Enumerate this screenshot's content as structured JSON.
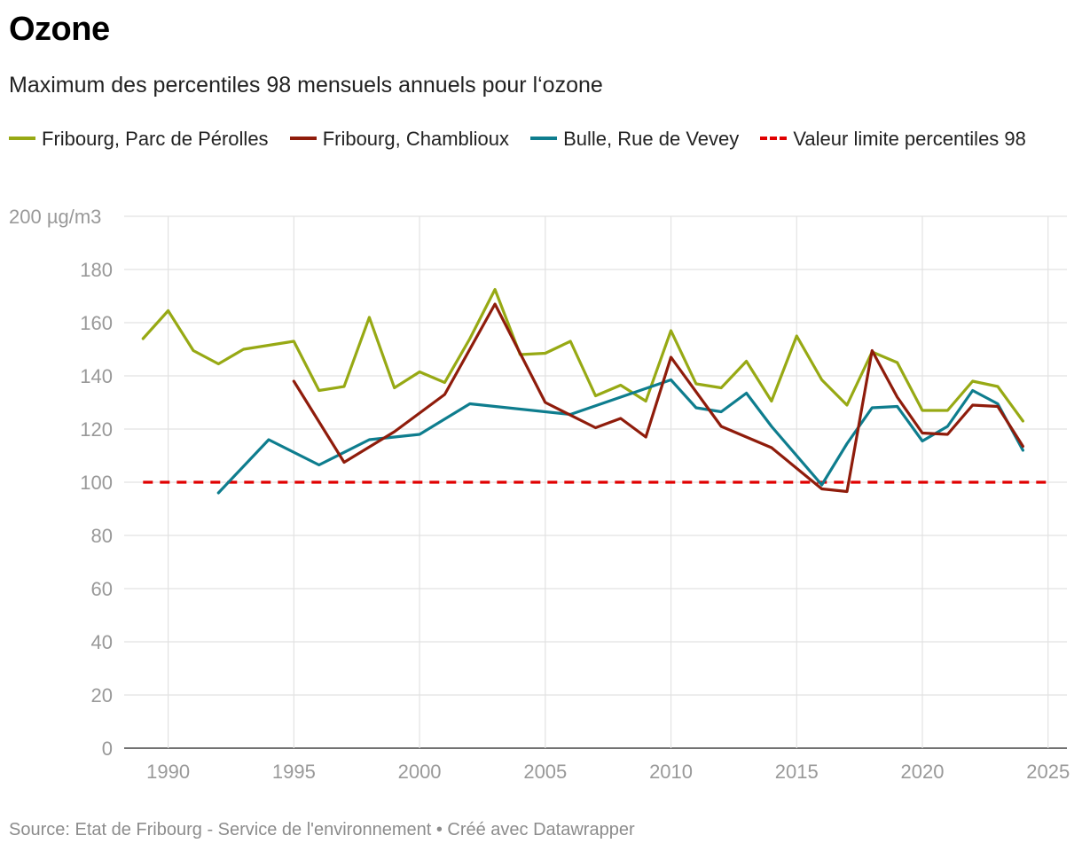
{
  "title": "Ozone",
  "subtitle": "Maximum des percentiles 98 mensuels annuels pour l‘ozone",
  "legend": [
    {
      "label": "Fribourg, Parc de Pérolles",
      "color": "#97a914",
      "style": "solid"
    },
    {
      "label": "Fribourg, Chamblioux",
      "color": "#8f1c0b",
      "style": "solid"
    },
    {
      "label": "Bulle, Rue de Vevey",
      "color": "#0e7d8e",
      "style": "solid"
    },
    {
      "label": "Valeur limite percentiles 98",
      "color": "#e00000",
      "style": "dashed"
    }
  ],
  "source": "Source: Etat de Fribourg - Service de l'environnement • Créé avec Datawrapper",
  "chart_data": {
    "type": "line",
    "title": "Ozone",
    "ylabel": "µg/m3",
    "y_unit_label": "200 µg/m3",
    "ylim": [
      0,
      200
    ],
    "xlim": [
      1988.25,
      2025.75
    ],
    "y_ticks": [
      0,
      20,
      40,
      60,
      80,
      100,
      120,
      140,
      160,
      180,
      200
    ],
    "x_ticks": [
      1990,
      1995,
      2000,
      2005,
      2010,
      2015,
      2020,
      2025
    ],
    "grid": true,
    "series": [
      {
        "name": "Fribourg, Parc de Pérolles",
        "color": "#97a914",
        "x": [
          1989,
          1990,
          1991,
          1992,
          1993,
          1994,
          1995,
          1996,
          1997,
          1998,
          1999,
          2000,
          2001,
          2002,
          2003,
          2004,
          2005,
          2006,
          2007,
          2008,
          2009,
          2010,
          2011,
          2012,
          2013,
          2014,
          2015,
          2016,
          2017,
          2018,
          2019,
          2020,
          2021,
          2022,
          2023,
          2024
        ],
        "values": [
          154,
          164.5,
          149.5,
          144.5,
          150,
          151.5,
          153,
          134.5,
          136,
          162,
          135.5,
          141.5,
          137.5,
          154,
          172.5,
          148,
          148.5,
          153,
          132.5,
          136.5,
          130.5,
          157,
          137,
          135.5,
          145.5,
          130.5,
          155,
          138.5,
          129,
          149,
          145,
          127,
          127,
          138,
          136,
          123
        ]
      },
      {
        "name": "Fribourg, Chamblioux",
        "color": "#8f1c0b",
        "x": [
          1995,
          1997,
          1999,
          2001,
          2003,
          2005,
          2007,
          2008,
          2009,
          2010,
          2012,
          2014,
          2016,
          2017,
          2018,
          2019,
          2020,
          2021,
          2022,
          2023,
          2024
        ],
        "values": [
          138,
          107.5,
          119,
          133,
          167,
          130,
          120.5,
          124,
          117,
          147,
          121,
          113,
          97.5,
          96.5,
          149.5,
          132,
          118.5,
          118,
          129,
          128.5,
          113.5
        ]
      },
      {
        "name": "Bulle, Rue de Vevey",
        "color": "#0e7d8e",
        "x": [
          1992,
          1994,
          1996,
          1998,
          2000,
          2002,
          2006,
          2008,
          2010,
          2011,
          2012,
          2013,
          2014,
          2016,
          2017,
          2018,
          2019,
          2020,
          2021,
          2022,
          2023,
          2024
        ],
        "values": [
          96,
          116,
          106.5,
          116,
          118,
          129.5,
          125.5,
          132,
          138.5,
          128,
          126.5,
          133.5,
          121,
          99,
          114.5,
          128,
          128.5,
          115.5,
          121,
          134.5,
          129.5,
          112
        ]
      },
      {
        "name": "Valeur limite percentiles 98",
        "color": "#e00000",
        "dashed": true,
        "x": [
          1989,
          2025
        ],
        "values": [
          100,
          100
        ]
      }
    ]
  }
}
